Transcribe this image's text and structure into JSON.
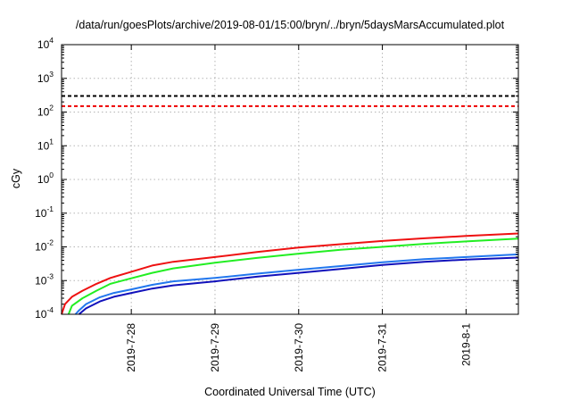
{
  "chart_data": {
    "type": "line",
    "title": "/data/run/goesPlots/archive/2019-08-01/15:00/bryn/../bryn/5daysMarsAccumulated.plot",
    "xlabel": "Coordinated Universal Time (UTC)",
    "ylabel": "cGy",
    "yscale": "log",
    "ylim": [
      0.0001,
      10000
    ],
    "xlim": [
      "2019-07-27 04:00",
      "2019-08-01 15:00"
    ],
    "grid": true,
    "x_ticks": [
      "2019-7-28",
      "2019-7-29",
      "2019-7-30",
      "2019-7-31",
      "2019-8-1"
    ],
    "y_ticks": [
      {
        "base": "10",
        "exp": "4"
      },
      {
        "base": "10",
        "exp": "3"
      },
      {
        "base": "10",
        "exp": "2"
      },
      {
        "base": "10",
        "exp": "1"
      },
      {
        "base": "10",
        "exp": "0"
      },
      {
        "base": "10",
        "exp": "-1"
      },
      {
        "base": "10",
        "exp": "-2"
      },
      {
        "base": "10",
        "exp": "-3"
      },
      {
        "base": "10",
        "exp": "-4"
      }
    ],
    "reference_lines": [
      {
        "value": 300,
        "color": "#000000",
        "style": "dashed"
      },
      {
        "value": 150,
        "color": "#ee0000",
        "style": "dashed"
      }
    ],
    "series": [
      {
        "color": "#ee1111",
        "points": [
          [
            "2019-07-27 04:00",
            0.0001
          ],
          [
            "2019-07-27 05:00",
            0.0002
          ],
          [
            "2019-07-27 07:00",
            0.00033
          ],
          [
            "2019-07-27 10:00",
            0.0005
          ],
          [
            "2019-07-27 14:00",
            0.0008
          ],
          [
            "2019-07-27 18:00",
            0.0012
          ],
          [
            "2019-07-27 23:00",
            0.0017
          ],
          [
            "2019-07-28 06:00",
            0.0028
          ],
          [
            "2019-07-28 12:00",
            0.0036
          ],
          [
            "2019-07-29 00:00",
            0.005
          ],
          [
            "2019-07-29 12:00",
            0.007
          ],
          [
            "2019-07-30 00:00",
            0.0095
          ],
          [
            "2019-07-30 12:00",
            0.012
          ],
          [
            "2019-07-31 00:00",
            0.015
          ],
          [
            "2019-07-31 12:00",
            0.018
          ],
          [
            "2019-08-01 00:00",
            0.021
          ],
          [
            "2019-08-01 15:00",
            0.025
          ]
        ]
      },
      {
        "color": "#22ee22",
        "points": [
          [
            "2019-07-27 06:00",
            0.0001
          ],
          [
            "2019-07-27 07:00",
            0.00018
          ],
          [
            "2019-07-27 10:00",
            0.0003
          ],
          [
            "2019-07-27 14:00",
            0.0005
          ],
          [
            "2019-07-27 18:00",
            0.0008
          ],
          [
            "2019-07-27 23:00",
            0.0011
          ],
          [
            "2019-07-28 06:00",
            0.0017
          ],
          [
            "2019-07-28 12:00",
            0.0023
          ],
          [
            "2019-07-29 00:00",
            0.0034
          ],
          [
            "2019-07-29 12:00",
            0.0047
          ],
          [
            "2019-07-30 00:00",
            0.0063
          ],
          [
            "2019-07-30 12:00",
            0.0082
          ],
          [
            "2019-07-31 00:00",
            0.01
          ],
          [
            "2019-07-31 12:00",
            0.0123
          ],
          [
            "2019-08-01 00:00",
            0.0145
          ],
          [
            "2019-08-01 15:00",
            0.0175
          ]
        ]
      },
      {
        "color": "#2277ee",
        "points": [
          [
            "2019-07-27 08:00",
            0.0001
          ],
          [
            "2019-07-27 09:00",
            0.00013
          ],
          [
            "2019-07-27 11:00",
            0.0002
          ],
          [
            "2019-07-27 15:00",
            0.00032
          ],
          [
            "2019-07-27 19:00",
            0.00043
          ],
          [
            "2019-07-28 00:00",
            0.00055
          ],
          [
            "2019-07-28 06:00",
            0.00075
          ],
          [
            "2019-07-28 12:00",
            0.00095
          ],
          [
            "2019-07-29 00:00",
            0.0012
          ],
          [
            "2019-07-29 12:00",
            0.0016
          ],
          [
            "2019-07-30 00:00",
            0.0021
          ],
          [
            "2019-07-30 12:00",
            0.0027
          ],
          [
            "2019-07-31 00:00",
            0.0035
          ],
          [
            "2019-07-31 12:00",
            0.0043
          ],
          [
            "2019-08-01 00:00",
            0.005
          ],
          [
            "2019-08-01 15:00",
            0.006
          ]
        ]
      },
      {
        "color": "#1111bb",
        "points": [
          [
            "2019-07-27 09:00",
            0.0001
          ],
          [
            "2019-07-27 11:00",
            0.00015
          ],
          [
            "2019-07-27 15:00",
            0.00024
          ],
          [
            "2019-07-27 19:00",
            0.00033
          ],
          [
            "2019-07-28 00:00",
            0.00043
          ],
          [
            "2019-07-28 06:00",
            0.00058
          ],
          [
            "2019-07-28 12:00",
            0.00072
          ],
          [
            "2019-07-29 00:00",
            0.00095
          ],
          [
            "2019-07-29 12:00",
            0.0013
          ],
          [
            "2019-07-30 00:00",
            0.0017
          ],
          [
            "2019-07-30 12:00",
            0.0022
          ],
          [
            "2019-07-31 00:00",
            0.0029
          ],
          [
            "2019-07-31 12:00",
            0.0036
          ],
          [
            "2019-08-01 00:00",
            0.0042
          ],
          [
            "2019-08-01 15:00",
            0.0048
          ]
        ]
      }
    ]
  }
}
